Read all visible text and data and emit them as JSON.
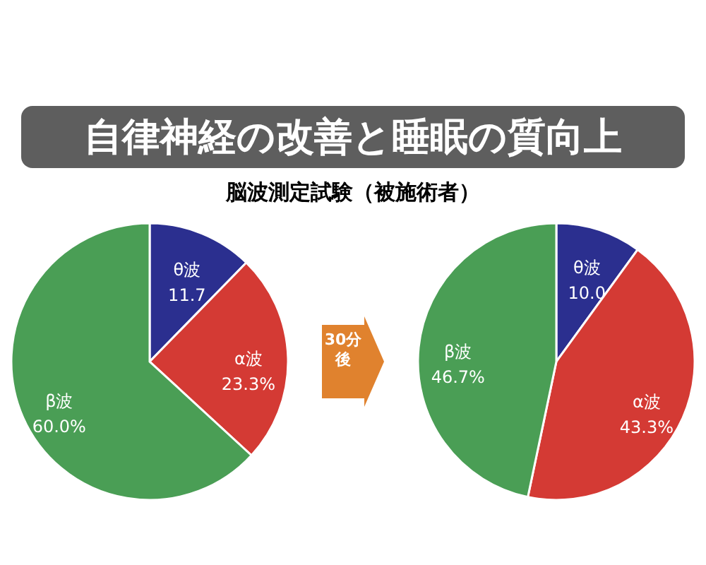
{
  "chart_data": [
    {
      "type": "pie",
      "title": "自律神経の改善と睡眠の質向上",
      "subtitle": "脳波測定試験（被施術者）",
      "annotations": [
        "30分後"
      ],
      "categories": [
        "θ波",
        "α波",
        "β波"
      ],
      "values": [
        11.7,
        23.3,
        60.0
      ],
      "colors": [
        "#2b2f8f",
        "#d43a34",
        "#4a9e55"
      ],
      "value_labels": [
        "11.7",
        "23.3%",
        "60.0%"
      ]
    },
    {
      "type": "pie",
      "categories": [
        "θ波",
        "α波",
        "β波"
      ],
      "values": [
        10.0,
        43.3,
        46.7
      ],
      "colors": [
        "#2b2f8f",
        "#d43a34",
        "#4a9e55"
      ],
      "value_labels": [
        "10.0",
        "43.3%",
        "46.7%"
      ]
    }
  ]
}
